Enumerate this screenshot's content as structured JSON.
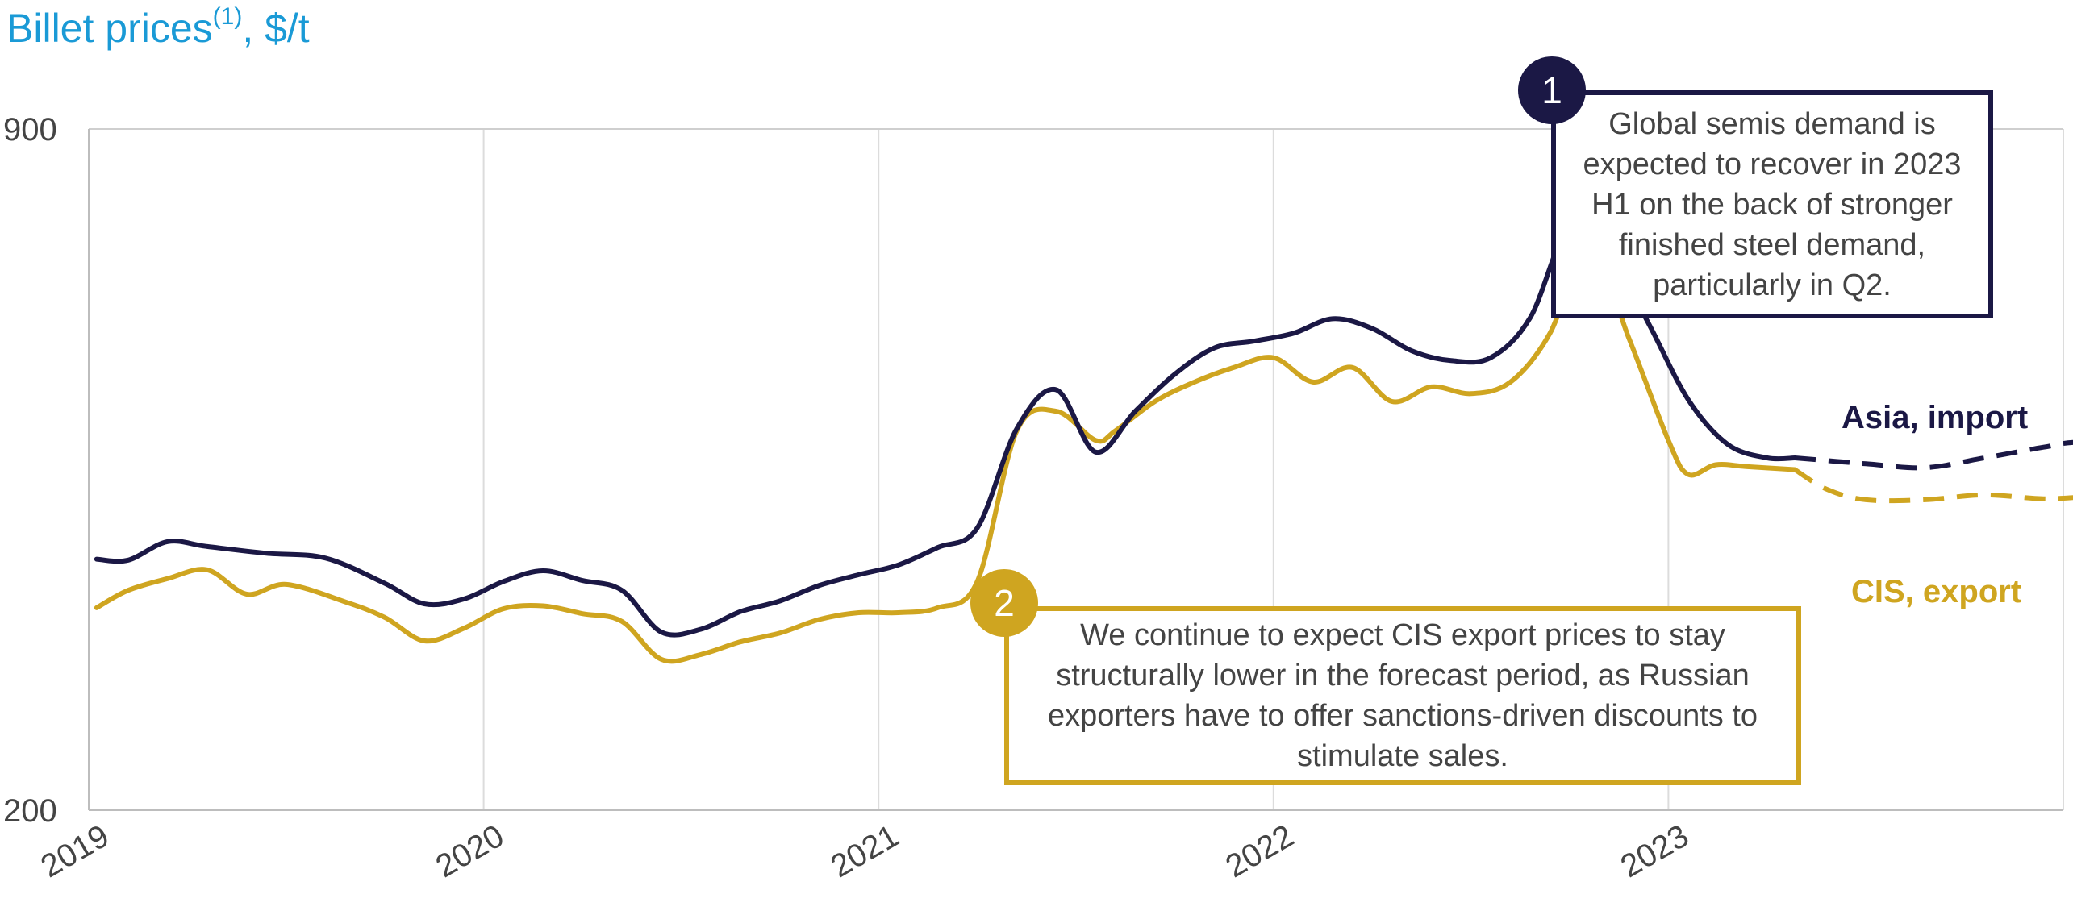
{
  "chart_data": {
    "type": "line",
    "title": "Billet prices",
    "title_note": "(1)",
    "unit": ", $/t",
    "ylim": [
      200,
      900
    ],
    "y_tick_labels": [
      "900",
      "200"
    ],
    "xlim": [
      2019,
      2024
    ],
    "x_tick_labels": [
      "2019",
      "2020",
      "2021",
      "2022",
      "2023"
    ],
    "grid": "vertical",
    "series": [
      {
        "name": "Asia, import",
        "color": "#1b1845",
        "solid": [
          [
            2019.02,
            458
          ],
          [
            2019.1,
            457
          ],
          [
            2019.2,
            476
          ],
          [
            2019.3,
            471
          ],
          [
            2019.45,
            464
          ],
          [
            2019.6,
            459
          ],
          [
            2019.75,
            433
          ],
          [
            2019.85,
            412
          ],
          [
            2019.95,
            417
          ],
          [
            2020.05,
            435
          ],
          [
            2020.15,
            446
          ],
          [
            2020.25,
            436
          ],
          [
            2020.35,
            426
          ],
          [
            2020.45,
            383
          ],
          [
            2020.55,
            386
          ],
          [
            2020.65,
            404
          ],
          [
            2020.75,
            415
          ],
          [
            2020.85,
            431
          ],
          [
            2020.95,
            442
          ],
          [
            2021.05,
            452
          ],
          [
            2021.15,
            470
          ],
          [
            2021.25,
            490
          ],
          [
            2021.35,
            592
          ],
          [
            2021.45,
            632
          ],
          [
            2021.55,
            568
          ],
          [
            2021.65,
            610
          ],
          [
            2021.75,
            648
          ],
          [
            2021.85,
            675
          ],
          [
            2021.95,
            682
          ],
          [
            2022.05,
            690
          ],
          [
            2022.15,
            705
          ],
          [
            2022.25,
            695
          ],
          [
            2022.35,
            672
          ],
          [
            2022.45,
            662
          ],
          [
            2022.55,
            665
          ],
          [
            2022.65,
            706
          ],
          [
            2022.75,
            800
          ],
          [
            2022.85,
            772
          ],
          [
            2022.95,
            700
          ],
          [
            2023.05,
            622
          ],
          [
            2023.15,
            576
          ],
          [
            2023.25,
            562
          ],
          [
            2023.32,
            562
          ]
        ],
        "forecast": [
          [
            2023.32,
            562
          ],
          [
            2023.5,
            556
          ],
          [
            2023.65,
            552
          ],
          [
            2023.8,
            562
          ],
          [
            2023.95,
            573
          ],
          [
            2024.05,
            578
          ],
          [
            2024.25,
            570
          ],
          [
            2024.4,
            588
          ],
          [
            2024.55,
            582
          ],
          [
            2024.7,
            575
          ]
        ]
      },
      {
        "name": "CIS, export",
        "color": "#cfa520",
        "solid": [
          [
            2019.02,
            408
          ],
          [
            2019.1,
            426
          ],
          [
            2019.2,
            438
          ],
          [
            2019.3,
            447
          ],
          [
            2019.4,
            422
          ],
          [
            2019.5,
            432
          ],
          [
            2019.65,
            414
          ],
          [
            2019.75,
            398
          ],
          [
            2019.85,
            374
          ],
          [
            2019.95,
            387
          ],
          [
            2020.05,
            407
          ],
          [
            2020.15,
            410
          ],
          [
            2020.25,
            402
          ],
          [
            2020.35,
            394
          ],
          [
            2020.45,
            355
          ],
          [
            2020.55,
            360
          ],
          [
            2020.65,
            373
          ],
          [
            2020.75,
            382
          ],
          [
            2020.85,
            396
          ],
          [
            2020.95,
            403
          ],
          [
            2021.05,
            403
          ],
          [
            2021.15,
            408
          ],
          [
            2021.25,
            435
          ],
          [
            2021.35,
            590
          ],
          [
            2021.45,
            610
          ],
          [
            2021.55,
            580
          ],
          [
            2021.6,
            590
          ],
          [
            2021.7,
            620
          ],
          [
            2021.8,
            640
          ],
          [
            2021.9,
            655
          ],
          [
            2022.0,
            665
          ],
          [
            2022.1,
            640
          ],
          [
            2022.2,
            655
          ],
          [
            2022.3,
            620
          ],
          [
            2022.4,
            635
          ],
          [
            2022.5,
            628
          ],
          [
            2022.6,
            640
          ],
          [
            2022.7,
            690
          ],
          [
            2022.8,
            782
          ],
          [
            2022.9,
            685
          ],
          [
            2023.0,
            580
          ],
          [
            2023.05,
            545
          ],
          [
            2023.12,
            555
          ],
          [
            2023.2,
            553
          ],
          [
            2023.32,
            550
          ]
        ],
        "forecast": [
          [
            2023.32,
            550
          ],
          [
            2023.4,
            530
          ],
          [
            2023.5,
            519
          ],
          [
            2023.65,
            519
          ],
          [
            2023.8,
            524
          ],
          [
            2023.95,
            520
          ],
          [
            2024.1,
            522
          ],
          [
            2024.25,
            515
          ],
          [
            2024.4,
            512
          ],
          [
            2024.55,
            516
          ],
          [
            2024.7,
            510
          ]
        ]
      }
    ],
    "annotations": [
      {
        "marker": "1",
        "text": "Global semis demand is expected to recover in 2023 H1 on the back of stronger finished steel demand, particularly in Q2."
      },
      {
        "marker": "2",
        "text": "We continue to expect CIS export prices to stay structurally lower in the forecast period, as Russian exporters have to offer sanctions-driven discounts to stimulate sales."
      }
    ]
  }
}
